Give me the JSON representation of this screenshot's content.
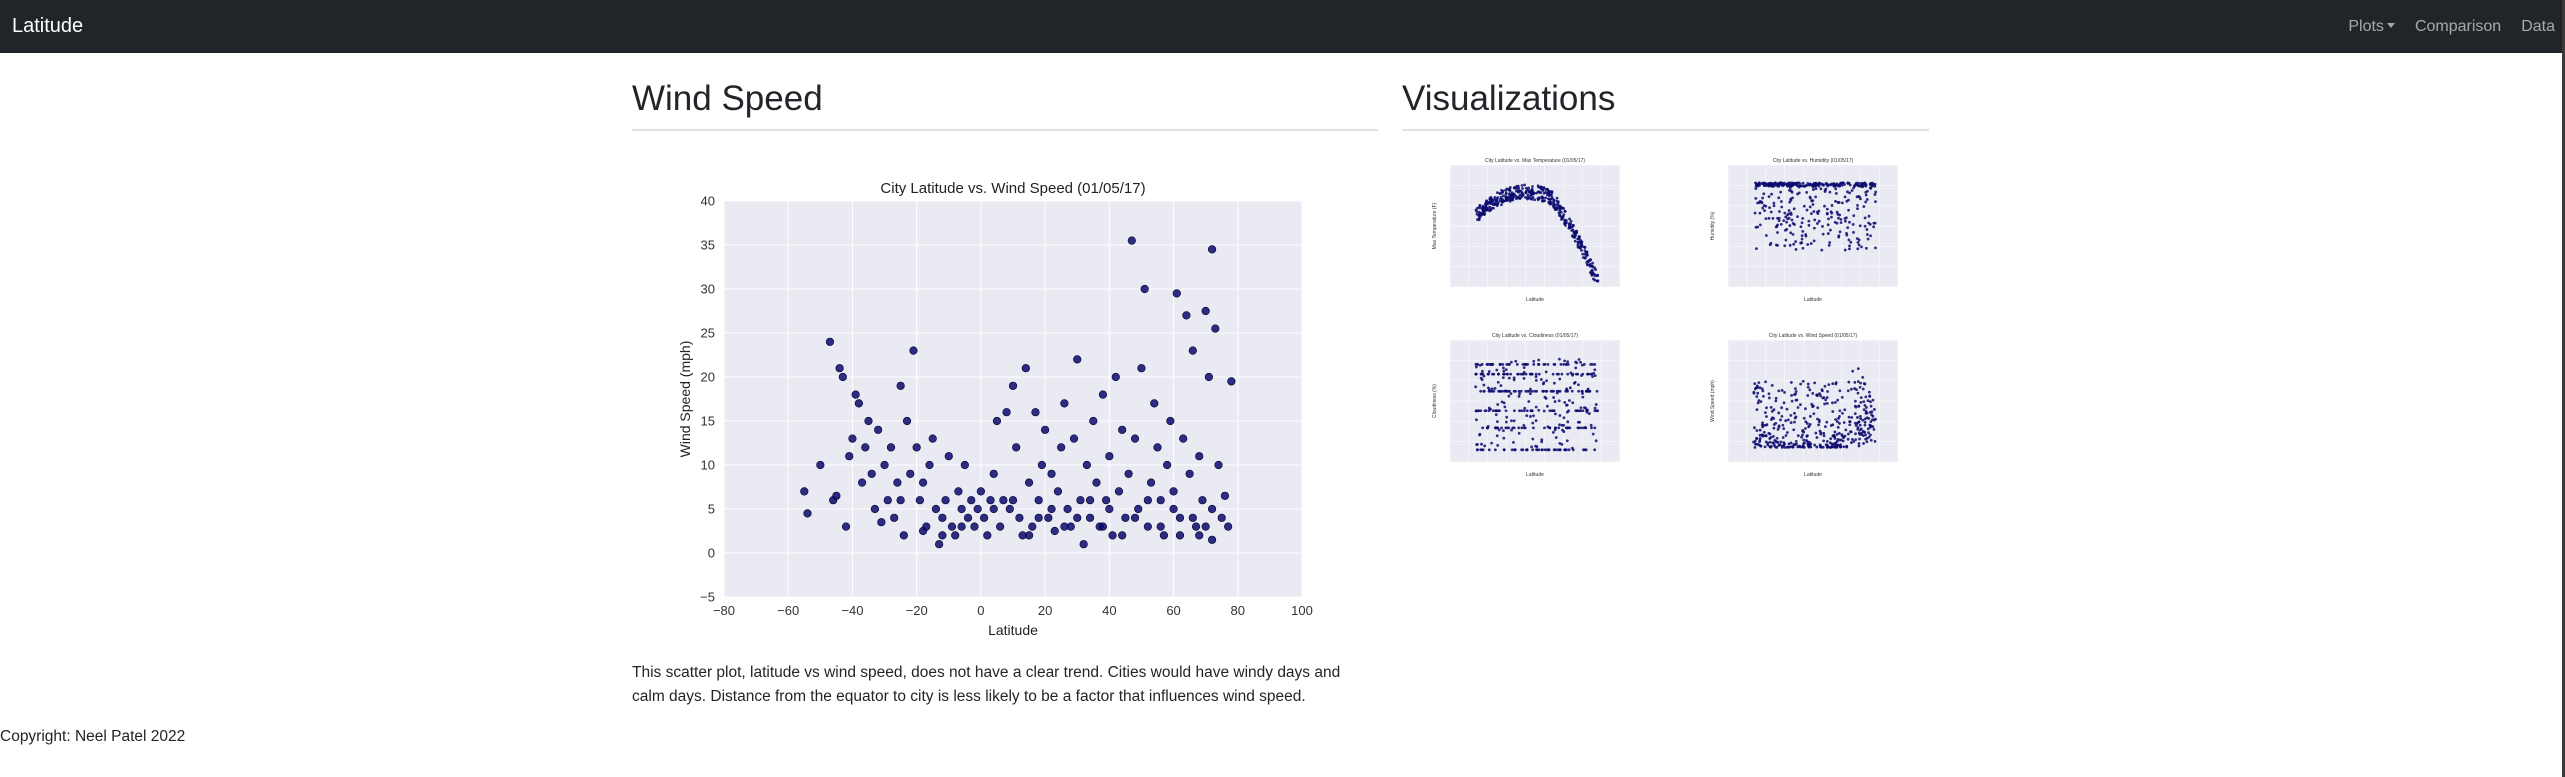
{
  "navbar": {
    "brand": "Latitude",
    "items": [
      {
        "label": "Plots",
        "dropdown": true
      },
      {
        "label": "Comparison",
        "dropdown": false
      },
      {
        "label": "Data",
        "dropdown": false
      }
    ]
  },
  "left": {
    "heading": "Wind Speed",
    "description": "This scatter plot, latitude vs wind speed, does not have a clear trend. Cities would have windy days and calm days. Distance from the equator to city is less likely to be a factor that influences wind speed."
  },
  "right": {
    "heading": "Visualizations"
  },
  "footer": {
    "copyright": "Copyright: Neel Patel 2022"
  },
  "colors": {
    "navbar_bg": "#212529",
    "plot_bg": "#eaeaf2",
    "marker": "#0a0a6e"
  },
  "chart_data": [
    {
      "type": "scatter",
      "title": "City Latitude vs. Wind Speed (01/05/17)",
      "xlabel": "Latitude",
      "ylabel": "Wind Speed (mph)",
      "xlim": [
        -80,
        100
      ],
      "ylim": [
        -5,
        40
      ],
      "xticks": [
        "−80",
        "−60",
        "−40",
        "−20",
        "0",
        "20",
        "40",
        "60",
        "80",
        "100"
      ],
      "yticks": [
        "−5",
        "0",
        "5",
        "10",
        "15",
        "20",
        "25",
        "30",
        "35",
        "40"
      ],
      "grid": true,
      "points": [
        [
          -55,
          7
        ],
        [
          -54,
          4.5
        ],
        [
          -50,
          10
        ],
        [
          -47,
          24
        ],
        [
          -46,
          6
        ],
        [
          -45,
          6.5
        ],
        [
          -44,
          21
        ],
        [
          -43,
          20
        ],
        [
          -42,
          3
        ],
        [
          -41,
          11
        ],
        [
          -40,
          13
        ],
        [
          -39,
          18
        ],
        [
          -38,
          17
        ],
        [
          -37,
          8
        ],
        [
          -36,
          12
        ],
        [
          -35,
          15
        ],
        [
          -34,
          9
        ],
        [
          -33,
          5
        ],
        [
          -32,
          14
        ],
        [
          -31,
          3.5
        ],
        [
          -30,
          10
        ],
        [
          -29,
          6
        ],
        [
          -28,
          12
        ],
        [
          -27,
          4
        ],
        [
          -26,
          8
        ],
        [
          -25,
          19
        ],
        [
          -24,
          2
        ],
        [
          -23,
          15
        ],
        [
          -22,
          9
        ],
        [
          -21,
          23
        ],
        [
          -20,
          12
        ],
        [
          -19,
          6
        ],
        [
          -18,
          2.5
        ],
        [
          -17,
          3
        ],
        [
          -16,
          10
        ],
        [
          -15,
          13
        ],
        [
          -14,
          5
        ],
        [
          -13,
          1
        ],
        [
          -12,
          4
        ],
        [
          -11,
          6
        ],
        [
          -10,
          11
        ],
        [
          -9,
          3
        ],
        [
          -8,
          2
        ],
        [
          -7,
          7
        ],
        [
          -6,
          5
        ],
        [
          -5,
          10
        ],
        [
          -4,
          4
        ],
        [
          -3,
          6
        ],
        [
          -2,
          3
        ],
        [
          -1,
          5
        ],
        [
          0,
          7
        ],
        [
          1,
          4
        ],
        [
          2,
          2
        ],
        [
          3,
          6
        ],
        [
          4,
          9
        ],
        [
          5,
          15
        ],
        [
          6,
          3
        ],
        [
          7,
          6
        ],
        [
          8,
          16
        ],
        [
          9,
          5
        ],
        [
          10,
          19
        ],
        [
          11,
          12
        ],
        [
          12,
          4
        ],
        [
          13,
          2
        ],
        [
          14,
          21
        ],
        [
          15,
          8
        ],
        [
          16,
          3
        ],
        [
          17,
          16
        ],
        [
          18,
          6
        ],
        [
          19,
          10
        ],
        [
          20,
          14
        ],
        [
          21,
          4
        ],
        [
          22,
          9
        ],
        [
          23,
          2.5
        ],
        [
          24,
          7
        ],
        [
          25,
          12
        ],
        [
          26,
          17
        ],
        [
          27,
          5
        ],
        [
          28,
          3
        ],
        [
          29,
          13
        ],
        [
          30,
          22
        ],
        [
          31,
          6
        ],
        [
          32,
          1
        ],
        [
          33,
          10
        ],
        [
          34,
          4
        ],
        [
          35,
          15
        ],
        [
          36,
          8
        ],
        [
          37,
          3
        ],
        [
          38,
          18
        ],
        [
          39,
          6
        ],
        [
          40,
          11
        ],
        [
          41,
          2
        ],
        [
          42,
          20
        ],
        [
          43,
          7
        ],
        [
          44,
          14
        ],
        [
          45,
          4
        ],
        [
          46,
          9
        ],
        [
          47,
          35.5
        ],
        [
          48,
          13
        ],
        [
          49,
          5
        ],
        [
          50,
          21
        ],
        [
          51,
          30
        ],
        [
          52,
          3
        ],
        [
          53,
          8
        ],
        [
          54,
          17
        ],
        [
          55,
          12
        ],
        [
          56,
          6
        ],
        [
          57,
          2
        ],
        [
          58,
          10
        ],
        [
          59,
          15
        ],
        [
          60,
          7
        ],
        [
          61,
          29.5
        ],
        [
          62,
          4
        ],
        [
          63,
          13
        ],
        [
          64,
          27
        ],
        [
          65,
          9
        ],
        [
          66,
          23
        ],
        [
          67,
          3
        ],
        [
          68,
          11
        ],
        [
          69,
          6
        ],
        [
          70,
          27.5
        ],
        [
          71,
          20
        ],
        [
          72,
          34.5
        ],
        [
          73,
          25.5
        ],
        [
          74,
          10
        ],
        [
          75,
          4
        ],
        [
          76,
          6.5
        ],
        [
          77,
          3
        ],
        [
          78,
          19.5
        ],
        [
          -25,
          6
        ],
        [
          -18,
          8
        ],
        [
          -12,
          2
        ],
        [
          -6,
          3
        ],
        [
          4,
          5
        ],
        [
          10,
          6
        ],
        [
          15,
          2
        ],
        [
          18,
          4
        ],
        [
          22,
          5
        ],
        [
          26,
          3
        ],
        [
          30,
          4
        ],
        [
          34,
          6
        ],
        [
          38,
          3
        ],
        [
          40,
          5
        ],
        [
          44,
          2
        ],
        [
          48,
          4
        ],
        [
          52,
          6
        ],
        [
          56,
          3
        ],
        [
          60,
          5
        ],
        [
          62,
          2
        ],
        [
          66,
          4
        ],
        [
          68,
          2
        ],
        [
          70,
          3
        ],
        [
          72,
          5
        ],
        [
          72,
          1.5
        ]
      ]
    },
    {
      "type": "scatter",
      "title": "City Latitude vs. Max Temperature (01/05/17)",
      "xlabel": "Latitude",
      "ylabel": "Max Temperature (F)"
    },
    {
      "type": "scatter",
      "title": "City Latitude vs. Humidity (01/05/17)",
      "xlabel": "Latitude",
      "ylabel": "Humidity (%)"
    },
    {
      "type": "scatter",
      "title": "City Latitude vs. Cloudiness (01/05/17)",
      "xlabel": "Latitude",
      "ylabel": "Cloudiness (%)"
    },
    {
      "type": "scatter",
      "title": "City Latitude vs. Wind Speed (01/05/17)",
      "xlabel": "Latitude",
      "ylabel": "Wind Speed (mph)"
    }
  ]
}
